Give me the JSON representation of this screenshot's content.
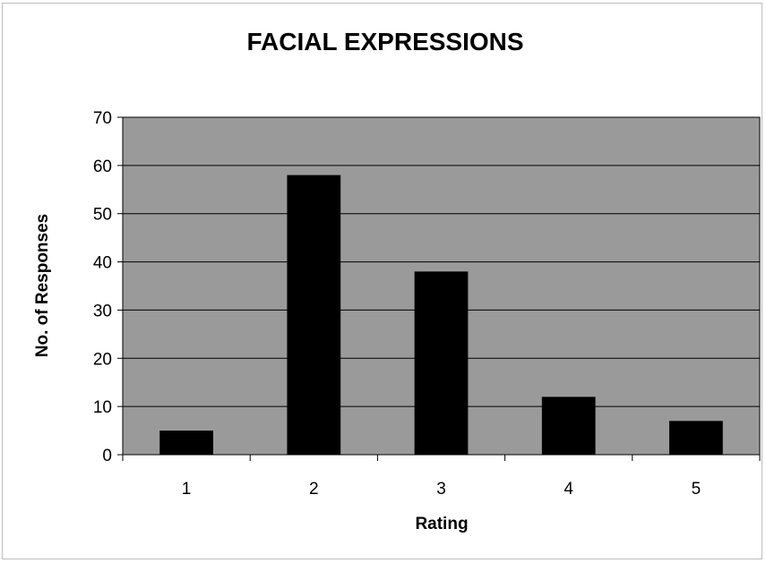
{
  "chart_data": {
    "type": "bar",
    "title": "FACIAL EXPRESSIONS",
    "xlabel": "Rating",
    "ylabel": "No. of Responses",
    "categories": [
      "1",
      "2",
      "3",
      "4",
      "5"
    ],
    "values": [
      5,
      58,
      38,
      12,
      7
    ],
    "ylim": [
      0,
      70
    ],
    "yticks": [
      "0",
      "10",
      "20",
      "30",
      "40",
      "50",
      "60",
      "70"
    ],
    "grid": true,
    "legend": "none",
    "colors": {
      "bar": "#000000",
      "plot_background": "#9a9a9a",
      "gridline": "#000000"
    }
  }
}
